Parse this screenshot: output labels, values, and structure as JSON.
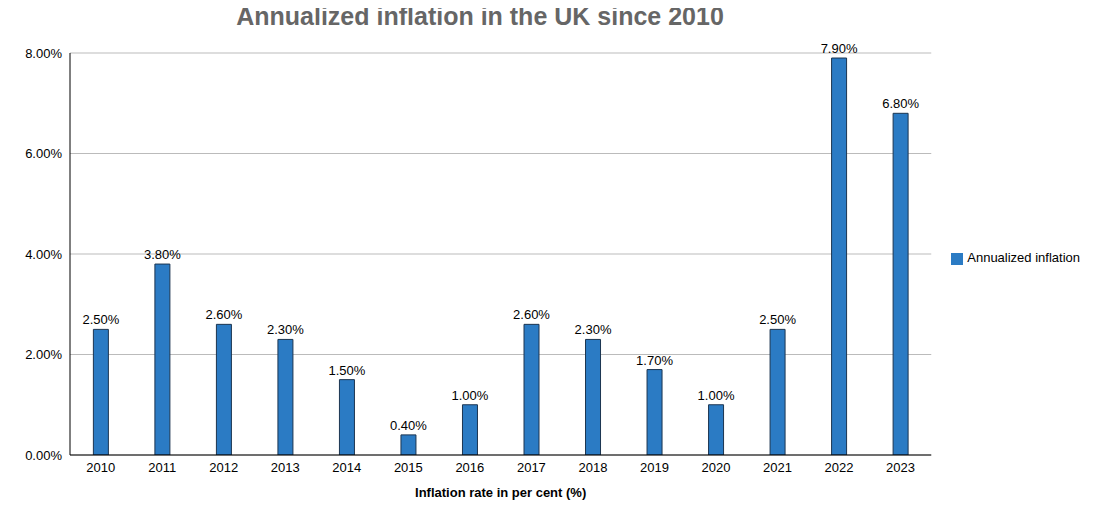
{
  "chart_data": {
    "type": "bar",
    "title": "Annualized inflation in the UK since 2010",
    "x_label": "Inflation rate in per cent (%)",
    "categories": [
      "2010",
      "2011",
      "2012",
      "2013",
      "2014",
      "2015",
      "2016",
      "2017",
      "2018",
      "2019",
      "2020",
      "2021",
      "2022",
      "2023"
    ],
    "series": [
      {
        "name": "Annualized inflation",
        "color": "#2b7bc4",
        "values": [
          2.5,
          3.8,
          2.6,
          2.3,
          1.5,
          0.4,
          1.0,
          2.6,
          2.3,
          1.7,
          1.0,
          2.5,
          7.9,
          6.8
        ],
        "value_labels": [
          "2.50%",
          "3.80%",
          "2.60%",
          "2.30%",
          "1.50%",
          "0.40%",
          "1.00%",
          "2.60%",
          "2.30%",
          "1.70%",
          "1.00%",
          "2.50%",
          "7.90%",
          "6.80%"
        ]
      }
    ],
    "ylim": [
      0,
      8
    ],
    "yticks": [
      {
        "value": 0,
        "label": "0.00%"
      },
      {
        "value": 2,
        "label": "2.00%"
      },
      {
        "value": 4,
        "label": "4.00%"
      },
      {
        "value": 6,
        "label": "6.00%"
      },
      {
        "value": 8,
        "label": "8.00%"
      }
    ],
    "grid": true,
    "legend": "right",
    "data_labels": true
  }
}
